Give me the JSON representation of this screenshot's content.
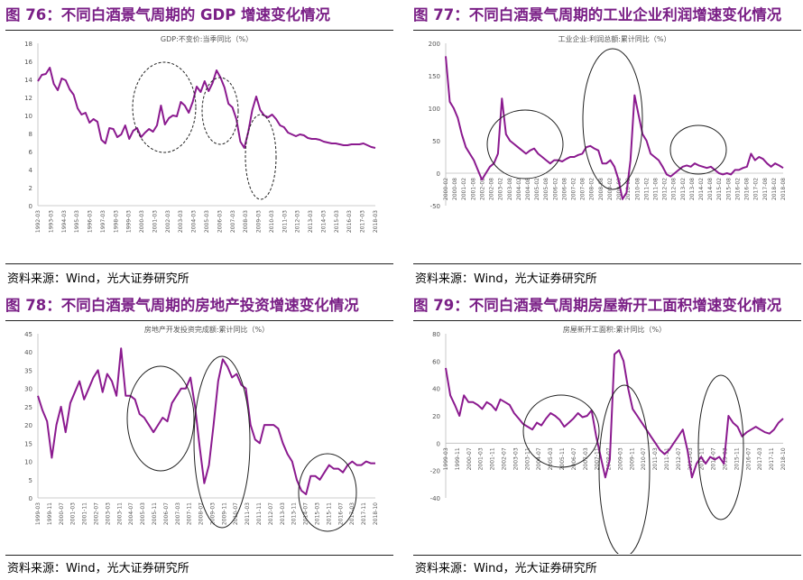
{
  "source_text": "资料来源：Wind，光大证券研究所",
  "line_color": "#8b1a8f",
  "title_color": "#7a1f86",
  "panels": [
    {
      "title": "图 76：不同白酒景气周期的 GDP 增速变化情况"
    },
    {
      "title": "图 77：不同白酒景气周期的工业企业利润增速变化情况"
    },
    {
      "title": "图 78：不同白酒景气周期的房地产投资增速变化情况"
    },
    {
      "title": "图 79：不同白酒景气周期房屋新开工面积增速变化情况"
    }
  ],
  "chart_data": [
    {
      "type": "line",
      "title": "GDP:不变价:当季同比（%）",
      "ylim": [
        0,
        18
      ],
      "yticks": [
        0,
        2,
        4,
        6,
        8,
        10,
        12,
        14,
        16,
        18
      ],
      "ellipse_style": "dashed",
      "xlabels": [
        "1992-03",
        "1993-03",
        "1994-03",
        "1995-03",
        "1996-03",
        "1997-03",
        "1998-03",
        "1999-03",
        "2000-03",
        "2001-03",
        "2002-03",
        "2003-03",
        "2004-03",
        "2005-03",
        "2006-03",
        "2007-03",
        "2008-03",
        "2009-03",
        "2010-03",
        "2011-03",
        "2012-03",
        "2013-03",
        "2014-03",
        "2015-03",
        "2016-03",
        "2017-03",
        "2018-03"
      ],
      "values": [
        13.8,
        14.5,
        14.6,
        15.3,
        13.5,
        12.8,
        14.1,
        13.9,
        12.9,
        12.3,
        10.8,
        10.1,
        10.3,
        9.2,
        9.6,
        9.3,
        7.3,
        6.9,
        8.6,
        8.5,
        7.6,
        7.9,
        8.9,
        7.4,
        8.3,
        8.6,
        7.6,
        8.1,
        8.5,
        8.2,
        8.9,
        11.1,
        9.0,
        9.7,
        10.0,
        9.9,
        11.5,
        11.1,
        10.3,
        11.5,
        13.2,
        12.6,
        13.8,
        12.7,
        13.6,
        15.0,
        14.2,
        13.1,
        11.3,
        10.9,
        9.6,
        7.1,
        6.4,
        8.2,
        10.6,
        12.1,
        10.6,
        10.0,
        9.8,
        10.1,
        9.6,
        8.9,
        8.7,
        8.1,
        7.9,
        7.7,
        7.9,
        7.8,
        7.5,
        7.4,
        7.4,
        7.3,
        7.1,
        7.0,
        6.9,
        6.9,
        6.8,
        6.7,
        6.7,
        6.8,
        6.8,
        6.8,
        6.9,
        6.7,
        6.5,
        6.4
      ],
      "ellipses": [
        [
          176,
          83,
          35,
          50
        ],
        [
          238,
          87,
          20,
          37
        ],
        [
          283,
          138,
          17,
          47
        ]
      ]
    },
    {
      "type": "line",
      "title": "工业企业:利润总额:累计同比（%）",
      "ylim": [
        -50,
        200
      ],
      "yticks": [
        -50,
        0,
        50,
        100,
        150,
        200
      ],
      "ellipse_style": "solid",
      "xlabels": [
        "2000-02",
        "2000-08",
        "2001-02",
        "2001-08",
        "2002-02",
        "2002-08",
        "2003-02",
        "2003-08",
        "2004-02",
        "2004-08",
        "2005-02",
        "2005-08",
        "2006-02",
        "2006-08",
        "2007-02",
        "2007-08",
        "2008-02",
        "2008-08",
        "2009-02",
        "2009-08",
        "2010-02",
        "2010-08",
        "2011-02",
        "2011-08",
        "2012-02",
        "2012-08",
        "2013-02",
        "2013-08",
        "2014-02",
        "2014-08",
        "2015-02",
        "2015-08",
        "2016-02",
        "2016-08",
        "2017-02",
        "2017-08",
        "2018-02",
        "2018-08"
      ],
      "values": [
        180,
        110,
        100,
        85,
        60,
        40,
        30,
        20,
        5,
        -10,
        0,
        10,
        15,
        30,
        115,
        60,
        50,
        45,
        40,
        35,
        30,
        35,
        38,
        30,
        25,
        20,
        15,
        20,
        20,
        18,
        22,
        25,
        25,
        28,
        30,
        40,
        42,
        38,
        35,
        15,
        15,
        20,
        10,
        -10,
        -40,
        -30,
        20,
        120,
        90,
        60,
        50,
        30,
        25,
        20,
        10,
        -2,
        -5,
        0,
        5,
        10,
        12,
        10,
        15,
        12,
        10,
        8,
        10,
        5,
        0,
        -2,
        0,
        -2,
        5,
        5,
        8,
        10,
        30,
        20,
        25,
        22,
        15,
        10,
        15,
        12,
        8
      ],
      "ellipses": [
        [
          124,
          124,
          42,
          38
        ],
        [
          221,
          96,
          33,
          78
        ],
        [
          316,
          130,
          31,
          27
        ]
      ]
    },
    {
      "type": "line",
      "title": "房地产开发投资完成额:累计同比（%）",
      "ylim": [
        0,
        45
      ],
      "yticks": [
        0,
        5,
        10,
        15,
        20,
        25,
        30,
        35,
        40,
        45
      ],
      "ellipse_style": "solid",
      "xlabels": [
        "1999-03",
        "1999-11",
        "2000-07",
        "2001-03",
        "2001-11",
        "2002-07",
        "2003-03",
        "2003-11",
        "2004-07",
        "2005-03",
        "2005-11",
        "2006-07",
        "2007-03",
        "2007-11",
        "2008-07",
        "2009-03",
        "2009-11",
        "2010-07",
        "2011-03",
        "2011-11",
        "2012-07",
        "2013-03",
        "2013-11",
        "2014-07",
        "2015-03",
        "2015-11",
        "2016-07",
        "2017-03",
        "2017-11",
        "2018-10"
      ],
      "values": [
        28,
        24,
        21,
        11,
        20,
        25,
        18,
        26,
        29,
        32,
        27,
        30,
        33,
        35,
        29,
        34,
        32,
        28,
        41,
        28,
        28,
        27,
        23,
        22,
        20,
        18,
        20,
        22,
        21,
        26,
        28,
        30,
        30,
        33,
        25,
        14,
        4,
        9,
        20,
        32,
        38,
        36,
        33,
        34,
        31,
        30,
        20,
        16,
        15,
        20,
        20,
        20,
        19,
        15,
        12,
        10,
        5,
        2,
        1,
        6,
        6,
        5,
        7,
        9,
        8,
        8,
        7,
        9,
        10,
        9,
        9,
        10,
        9.5,
        9.5
      ],
      "ellipses": [
        [
          172,
          106,
          37,
          58
        ],
        [
          240,
          132,
          31,
          95
        ],
        [
          357,
          188,
          32,
          43
        ]
      ]
    },
    {
      "type": "line",
      "title": "房屋新开工面积:累计同比（%）",
      "ylim": [
        -40,
        80
      ],
      "yticks": [
        -40,
        -20,
        0,
        20,
        40,
        60,
        80
      ],
      "ellipse_style": "solid",
      "xlabels": [
        "1999-03",
        "1999-11",
        "2000-07",
        "2001-03",
        "2001-11",
        "2002-07",
        "2003-03",
        "2003-11",
        "2004-07",
        "2005-03",
        "2005-11",
        "2006-07",
        "2007-03",
        "2007-11",
        "2008-07",
        "2009-03",
        "2009-11",
        "2010-07",
        "2011-03",
        "2011-11",
        "2012-07",
        "2013-03",
        "2013-11",
        "2014-07",
        "2015-03",
        "2015-11",
        "2016-07",
        "2017-03",
        "2017-11",
        "2018-10"
      ],
      "values": [
        55,
        35,
        28,
        20,
        35,
        30,
        30,
        28,
        25,
        30,
        28,
        24,
        32,
        30,
        28,
        22,
        18,
        14,
        12,
        10,
        15,
        13,
        18,
        22,
        20,
        17,
        12,
        15,
        18,
        22,
        19,
        20,
        24,
        5,
        -10,
        -25,
        -12,
        65,
        68,
        60,
        40,
        25,
        20,
        15,
        10,
        5,
        0,
        -5,
        -8,
        -5,
        0,
        5,
        10,
        -5,
        -25,
        -15,
        -10,
        -15,
        -10,
        -12,
        -10,
        -15,
        20,
        15,
        12,
        5,
        8,
        10,
        12,
        10,
        8,
        7,
        10,
        15,
        18
      ],
      "ellipses": [
        [
          164,
          120,
          42,
          40
        ],
        [
          234,
          164,
          28,
          95
        ],
        [
          341,
          138,
          25,
          80
        ]
      ]
    }
  ]
}
